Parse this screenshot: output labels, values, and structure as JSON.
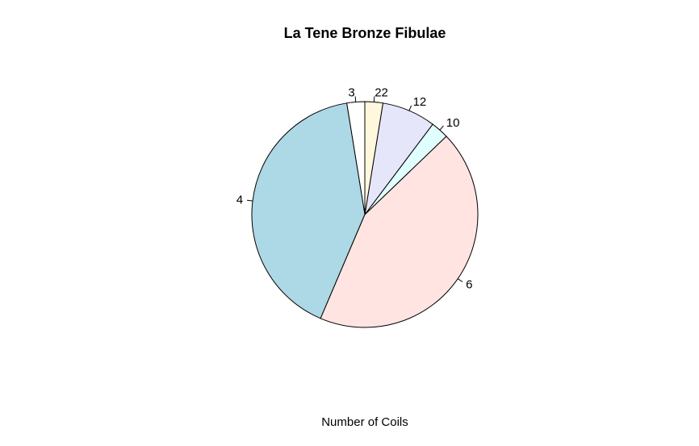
{
  "chart_data": {
    "type": "pie",
    "title": "La Tene Bronze Fibulae",
    "xlabel": "Number of Coils",
    "direction": "counterclockwise",
    "start_angle": "90",
    "slices": [
      {
        "label": "3",
        "value": 1,
        "color": "#FFFFFF"
      },
      {
        "label": "4",
        "value": 16,
        "color": "#ADD8E6"
      },
      {
        "label": "6",
        "value": 17,
        "color": "#FFE4E1"
      },
      {
        "label": "10",
        "value": 1,
        "color": "#E0FFFF"
      },
      {
        "label": "12",
        "value": 3,
        "color": "#E6E6FA"
      },
      {
        "label": "22",
        "value": 1,
        "color": "#FFF8DC"
      }
    ]
  }
}
